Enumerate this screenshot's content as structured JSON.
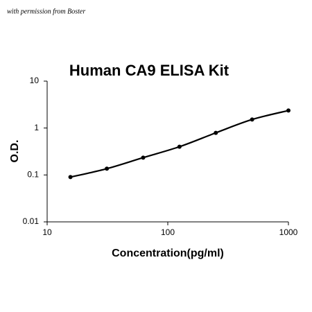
{
  "watermark": "with permission from Boster",
  "chart_data": {
    "type": "scatter",
    "title": "Human CA9 ELISA Kit",
    "x_label": "Concentration(pg/ml)",
    "y_label": "O.D.",
    "x": [
      15.6,
      31.25,
      62.5,
      125,
      250,
      500,
      1000
    ],
    "series": [
      {
        "values": [
          0.09,
          0.136,
          0.234,
          0.4,
          0.79,
          1.52,
          2.36
        ],
        "color": "#000000"
      }
    ],
    "xlim": [
      10,
      1000
    ],
    "ylim": [
      0.01,
      10
    ],
    "xticks": [
      10,
      100,
      1000
    ],
    "yticks": [
      0.01,
      0.1,
      1,
      10
    ],
    "xscale": "log",
    "yscale": "log",
    "grid": false
  }
}
